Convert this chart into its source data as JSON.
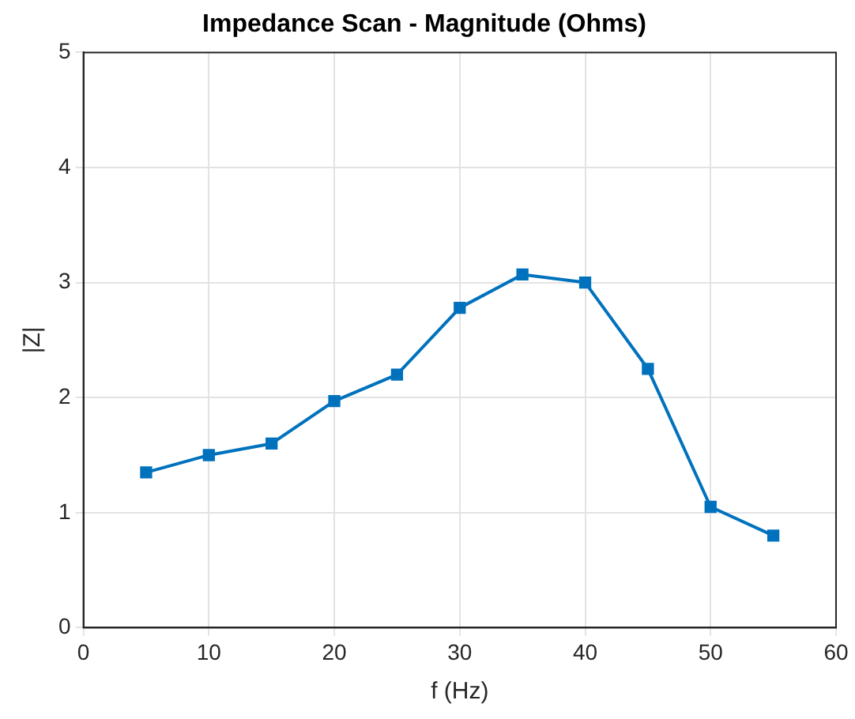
{
  "chart_data": {
    "type": "line",
    "title": "Impedance Scan - Magnitude (Ohms)",
    "xlabel": "f (Hz)",
    "ylabel": "|Z|",
    "x": [
      5,
      10,
      15,
      20,
      25,
      30,
      35,
      40,
      45,
      50,
      55
    ],
    "series": [
      {
        "color": "#0072bd",
        "values": [
          1.35,
          1.5,
          1.6,
          1.97,
          2.2,
          2.78,
          3.07,
          3.0,
          2.25,
          1.05,
          0.8
        ]
      }
    ],
    "xlim": [
      0,
      60
    ],
    "xticks": [
      0,
      10,
      20,
      30,
      40,
      50,
      60
    ],
    "ylim": [
      0,
      5
    ],
    "yticks": [
      0,
      1,
      2,
      3,
      4,
      5
    ],
    "grid": true,
    "legend": false,
    "marker": "square",
    "line_style": "solid"
  }
}
